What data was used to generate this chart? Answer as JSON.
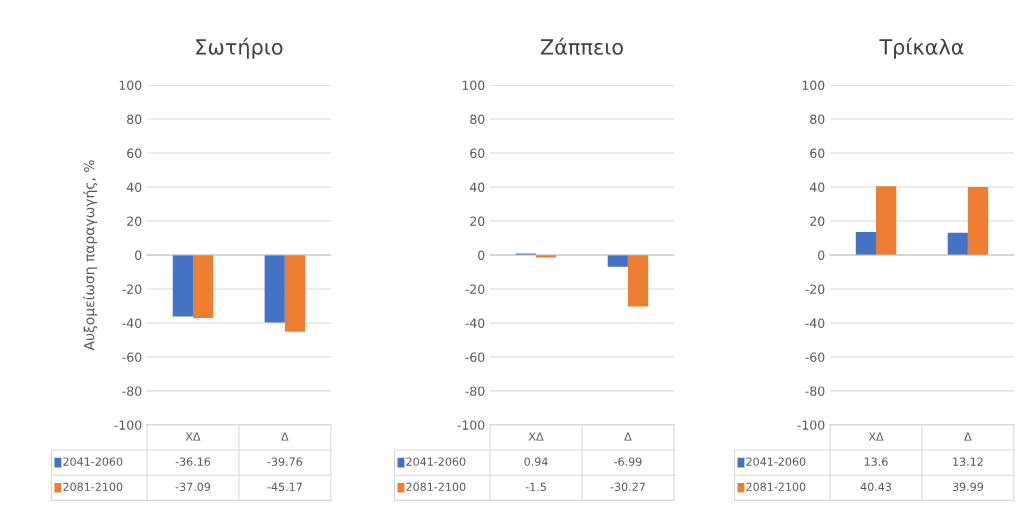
{
  "chart_data": [
    {
      "type": "bar",
      "title": "Σωτήριο",
      "ylabel": "Αυξομείωση παραγωγής, %",
      "categories": [
        "ΧΔ",
        "Δ"
      ],
      "ylim": [
        -100,
        100
      ],
      "yticks": [
        -100,
        -80,
        -60,
        -40,
        -20,
        0,
        20,
        40,
        60,
        80,
        100
      ],
      "grid": "y",
      "data_labels": true,
      "legend": "bottom",
      "series": [
        {
          "name": "2041-2060",
          "color": "#4472c4",
          "values": [
            -36.16,
            -39.76
          ]
        },
        {
          "name": "2081-2100",
          "color": "#ed7d31",
          "values": [
            -37.09,
            -45.17
          ]
        }
      ]
    },
    {
      "type": "bar",
      "title": "Ζάππειο",
      "categories": [
        "ΧΔ",
        "Δ"
      ],
      "ylim": [
        -100,
        100
      ],
      "yticks": [
        -100,
        -80,
        -60,
        -40,
        -20,
        0,
        20,
        40,
        60,
        80,
        100
      ],
      "grid": "y",
      "data_labels": true,
      "legend": "bottom",
      "series": [
        {
          "name": "2041-2060",
          "color": "#4472c4",
          "values": [
            0.94,
            -6.99
          ]
        },
        {
          "name": "2081-2100",
          "color": "#ed7d31",
          "values": [
            -1.5,
            -30.27
          ]
        }
      ]
    },
    {
      "type": "bar",
      "title": "Τρίκαλα",
      "categories": [
        "ΧΔ",
        "Δ"
      ],
      "ylim": [
        -100,
        100
      ],
      "yticks": [
        -100,
        -80,
        -60,
        -40,
        -20,
        0,
        20,
        40,
        60,
        80,
        100
      ],
      "grid": "y",
      "data_labels": true,
      "legend": "bottom",
      "series": [
        {
          "name": "2041-2060",
          "color": "#4472c4",
          "values": [
            13.6,
            13.12
          ]
        },
        {
          "name": "2081-2100",
          "color": "#ed7d31",
          "values": [
            40.43,
            39.99
          ]
        }
      ]
    }
  ]
}
